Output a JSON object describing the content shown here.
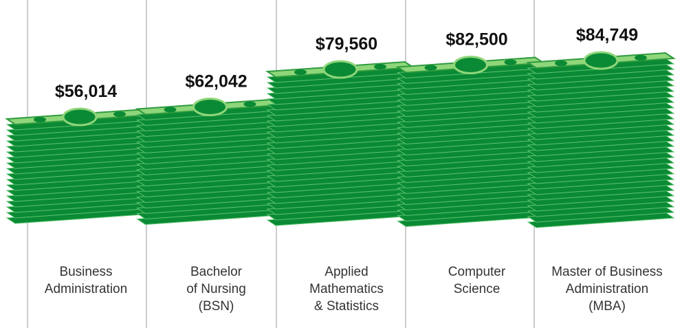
{
  "chart_data": {
    "type": "bar",
    "categories": [
      "Business\nAdministration",
      "Bachelor\nof Nursing\n(BSN)",
      "Applied\nMathematics\n& Statistics",
      "Computer\nScience",
      "Master of Business\nAdministration\n(MBA)"
    ],
    "values": [
      56014,
      62042,
      79560,
      82500,
      84749
    ],
    "value_labels": [
      "$56,014",
      "$62,042",
      "$79,560",
      "$82,500",
      "$84,749"
    ],
    "color": "#0b8a35"
  }
}
